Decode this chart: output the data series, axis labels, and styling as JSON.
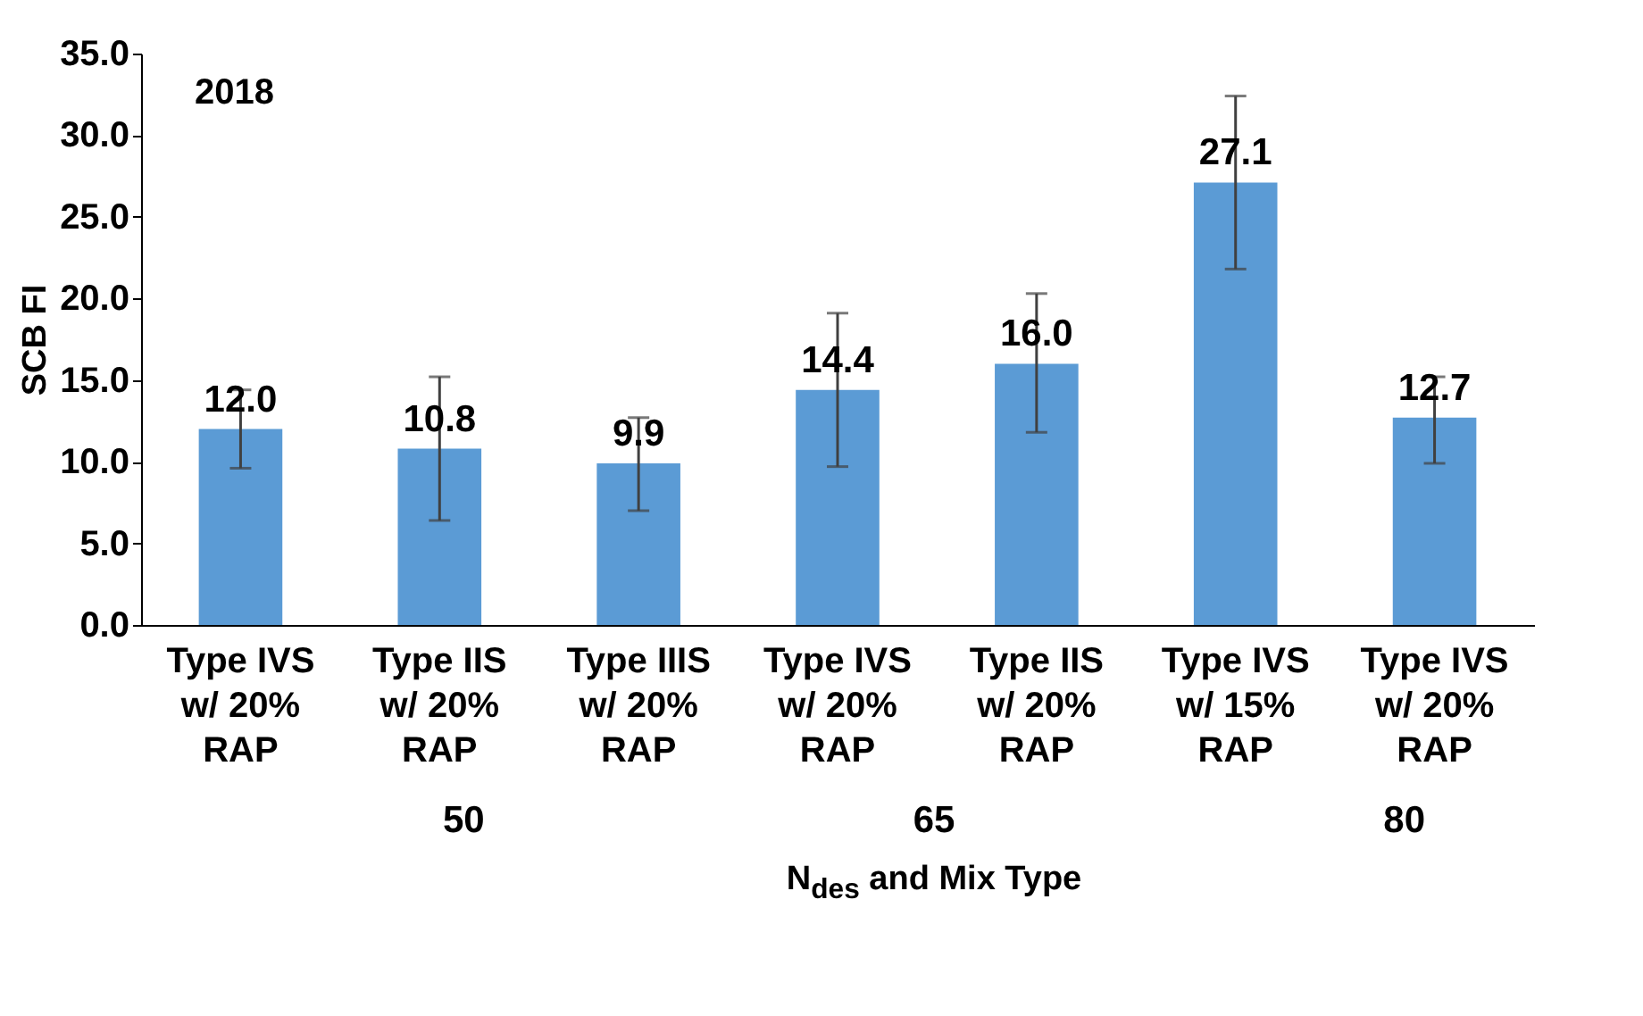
{
  "chart_data": {
    "type": "bar",
    "title": "2018",
    "xlabel": "N$_{des}$ and Mix Type",
    "ylabel": "SCB FI",
    "categories": [
      "Type IVS w/ 20% RAP",
      "Type IIS w/ 20% RAP",
      "Type IIIS w/ 20% RAP",
      "Type IVS w/ 20% RAP",
      "Type IIS w/ 20% RAP",
      "Type IVS w/ 15% RAP",
      "Type IVS w/ 20% RAP"
    ],
    "values": [
      12.0,
      10.8,
      9.9,
      14.4,
      16.0,
      27.1,
      12.7
    ],
    "value_labels": [
      "12.0",
      "10.8",
      "9.9",
      "14.4",
      "16.0",
      "27.1",
      "12.7"
    ],
    "errors": [
      [
        9.6,
        14.4
      ],
      [
        6.4,
        15.2
      ],
      [
        7.0,
        12.7
      ],
      [
        9.7,
        19.1
      ],
      [
        11.8,
        20.3
      ],
      [
        21.8,
        32.4
      ],
      [
        9.9,
        15.2
      ]
    ],
    "color": "#5b9bd5",
    "ylim": [
      0,
      35
    ],
    "yticks": [
      {
        "value": 0,
        "label": "0.0"
      },
      {
        "value": 5,
        "label": "5.0"
      },
      {
        "value": 10,
        "label": "10.0"
      },
      {
        "value": 15,
        "label": "15.0"
      },
      {
        "value": 20,
        "label": "20.0"
      },
      {
        "value": 25,
        "label": "25.0"
      },
      {
        "value": 30,
        "label": "30.0"
      },
      {
        "value": 35,
        "label": "35.0"
      }
    ],
    "annotations": [
      "50",
      "65",
      "80"
    ],
    "grid": false
  }
}
